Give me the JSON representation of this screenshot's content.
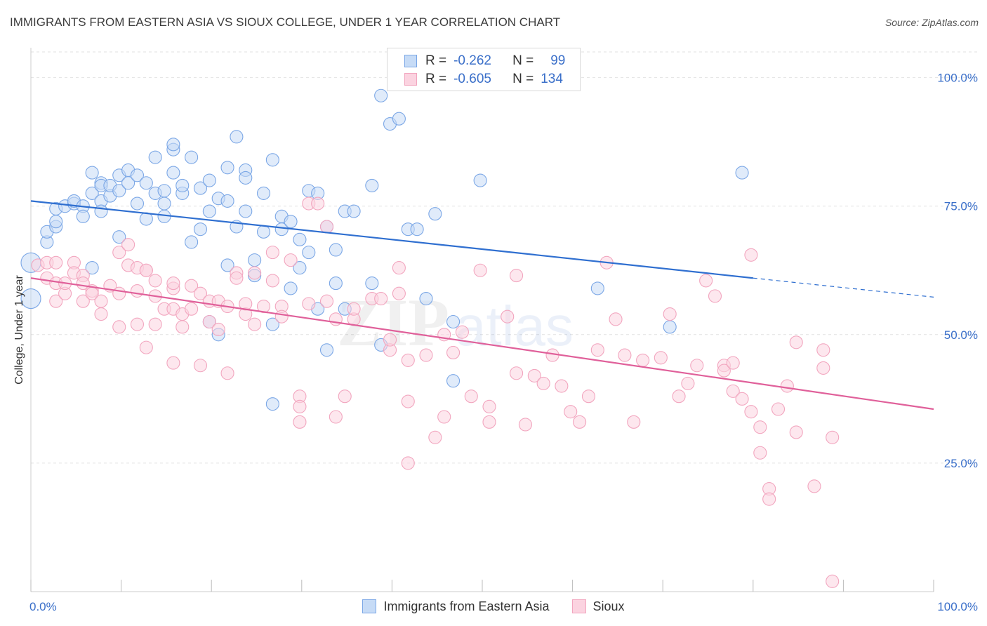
{
  "header": {
    "title": "IMMIGRANTS FROM EASTERN ASIA VS SIOUX COLLEGE, UNDER 1 YEAR CORRELATION CHART",
    "source": "Source: ZipAtlas.com"
  },
  "watermark": {
    "zip": "ZIP",
    "atlas": "atlas"
  },
  "stats": {
    "rows": [
      {
        "r_label": "R =",
        "r_value": "-0.262",
        "n_label": "N =",
        "n_value": "99",
        "color": "#7ba7e6"
      },
      {
        "r_label": "R =",
        "r_value": "-0.605",
        "n_label": "N =",
        "n_value": "134",
        "color": "#f2a6bf"
      }
    ]
  },
  "legend": {
    "items": [
      {
        "label": "Immigrants from Eastern Asia",
        "color": "#7ba7e6"
      },
      {
        "label": "Sioux",
        "color": "#f2a6bf"
      }
    ]
  },
  "chart_data": {
    "type": "scatter",
    "title": "IMMIGRANTS FROM EASTERN ASIA VS SIOUX COLLEGE, UNDER 1 YEAR CORRELATION CHART",
    "xlabel": "",
    "ylabel": "College, Under 1 year",
    "xlim": [
      0,
      100
    ],
    "ylim": [
      0,
      105
    ],
    "x_tick_labels": [
      "0.0%",
      "100.0%"
    ],
    "y_tick_labels": [
      "25.0%",
      "50.0%",
      "75.0%",
      "100.0%"
    ],
    "y_ticks": [
      25,
      50,
      75,
      100
    ],
    "grid": true,
    "legend_position": "bottom",
    "series": [
      {
        "name": "Immigrants from Eastern Asia",
        "color": "#7ba7e6",
        "trend_color": "#2f6fd0",
        "trend": {
          "x0": 0,
          "y0": 76,
          "x1": 80,
          "y1": 61,
          "dash_to_x": 100,
          "dash_to_y": 57.3
        },
        "points": [
          [
            0,
            57
          ],
          [
            0,
            64
          ],
          [
            1,
            68
          ],
          [
            1,
            70
          ],
          [
            2,
            71
          ],
          [
            2,
            72
          ],
          [
            2,
            74.5
          ],
          [
            3,
            75
          ],
          [
            4,
            75.5
          ],
          [
            4,
            76
          ],
          [
            5,
            75
          ],
          [
            5,
            73
          ],
          [
            6,
            63
          ],
          [
            6,
            81.5
          ],
          [
            6,
            77.5
          ],
          [
            7,
            79.5
          ],
          [
            7,
            79
          ],
          [
            7,
            76
          ],
          [
            7,
            74
          ],
          [
            8,
            77
          ],
          [
            8,
            79
          ],
          [
            9,
            78
          ],
          [
            9,
            81
          ],
          [
            9,
            69
          ],
          [
            10,
            82
          ],
          [
            10,
            79.5
          ],
          [
            11,
            75.5
          ],
          [
            11,
            81
          ],
          [
            12,
            72.5
          ],
          [
            12,
            79.5
          ],
          [
            13,
            77.5
          ],
          [
            13,
            84.5
          ],
          [
            14,
            78
          ],
          [
            14,
            75.5
          ],
          [
            14,
            73
          ],
          [
            15,
            86
          ],
          [
            15,
            87
          ],
          [
            15,
            81.5
          ],
          [
            16,
            77.5
          ],
          [
            16,
            79
          ],
          [
            17,
            84.5
          ],
          [
            17,
            68
          ],
          [
            18,
            78.5
          ],
          [
            18,
            70.5
          ],
          [
            19,
            80
          ],
          [
            19,
            74
          ],
          [
            19,
            52.5
          ],
          [
            20,
            76.5
          ],
          [
            20,
            50
          ],
          [
            21,
            76
          ],
          [
            21,
            63.5
          ],
          [
            21,
            82.5
          ],
          [
            22,
            88.5
          ],
          [
            22,
            71
          ],
          [
            23,
            82
          ],
          [
            23,
            74
          ],
          [
            23,
            80.5
          ],
          [
            24,
            61.5
          ],
          [
            24,
            64.5
          ],
          [
            25,
            77.5
          ],
          [
            25,
            70
          ],
          [
            26,
            52
          ],
          [
            26,
            36.5
          ],
          [
            26,
            84
          ],
          [
            27,
            73
          ],
          [
            27,
            70.5
          ],
          [
            28,
            72
          ],
          [
            28,
            59
          ],
          [
            29,
            68.5
          ],
          [
            29,
            63
          ],
          [
            30,
            66
          ],
          [
            30,
            78
          ],
          [
            31,
            55
          ],
          [
            31,
            77.5
          ],
          [
            32,
            71
          ],
          [
            32,
            47
          ],
          [
            33,
            66.5
          ],
          [
            33,
            60
          ],
          [
            34,
            55
          ],
          [
            34,
            74
          ],
          [
            35,
            74
          ],
          [
            37,
            79
          ],
          [
            37,
            60
          ],
          [
            38,
            48
          ],
          [
            38,
            96.5
          ],
          [
            39,
            91
          ],
          [
            40,
            92
          ],
          [
            41,
            70.5
          ],
          [
            42,
            70.5
          ],
          [
            43,
            57
          ],
          [
            44,
            73.5
          ],
          [
            46,
            52.5
          ],
          [
            46,
            41
          ],
          [
            49,
            80
          ],
          [
            62,
            59
          ],
          [
            70,
            51.5
          ],
          [
            78,
            81.5
          ]
        ]
      },
      {
        "name": "Sioux",
        "color": "#f2a6bf",
        "trend_color": "#e0609a",
        "trend": {
          "x0": 0,
          "y0": 61,
          "x1": 100,
          "y1": 35.5
        },
        "points": [
          [
            0,
            63.5
          ],
          [
            1,
            61
          ],
          [
            1,
            64
          ],
          [
            2,
            60
          ],
          [
            2,
            56.5
          ],
          [
            2,
            64
          ],
          [
            3,
            58
          ],
          [
            3,
            60
          ],
          [
            4,
            64
          ],
          [
            4,
            62
          ],
          [
            5,
            61.5
          ],
          [
            5,
            60
          ],
          [
            5,
            56.5
          ],
          [
            6,
            58.5
          ],
          [
            6,
            58
          ],
          [
            7,
            56.5
          ],
          [
            7,
            54
          ],
          [
            8,
            59.5
          ],
          [
            9,
            66
          ],
          [
            9,
            58
          ],
          [
            9,
            51.5
          ],
          [
            10,
            63.5
          ],
          [
            10,
            67.5
          ],
          [
            11,
            58.5
          ],
          [
            11,
            63
          ],
          [
            11,
            52
          ],
          [
            12,
            62.5
          ],
          [
            12,
            62.5
          ],
          [
            12,
            47.5
          ],
          [
            13,
            60.5
          ],
          [
            13,
            57.5
          ],
          [
            13,
            52
          ],
          [
            14,
            55
          ],
          [
            15,
            59
          ],
          [
            15,
            60
          ],
          [
            15,
            55
          ],
          [
            15,
            44.5
          ],
          [
            16,
            51.5
          ],
          [
            16,
            54
          ],
          [
            17,
            59.5
          ],
          [
            17,
            55
          ],
          [
            18,
            58
          ],
          [
            18,
            44
          ],
          [
            19,
            56.5
          ],
          [
            19,
            52.5
          ],
          [
            20,
            56.5
          ],
          [
            20,
            51
          ],
          [
            21,
            55.5
          ],
          [
            21,
            42.5
          ],
          [
            22,
            62
          ],
          [
            22,
            61
          ],
          [
            23,
            54
          ],
          [
            23,
            56
          ],
          [
            24,
            62
          ],
          [
            24,
            52
          ],
          [
            25,
            55.5
          ],
          [
            26,
            66
          ],
          [
            26,
            60.5
          ],
          [
            27,
            55.5
          ],
          [
            27,
            53.5
          ],
          [
            28,
            64.5
          ],
          [
            29,
            38
          ],
          [
            29,
            36
          ],
          [
            29,
            33
          ],
          [
            30,
            56
          ],
          [
            30,
            75.5
          ],
          [
            31,
            75.5
          ],
          [
            32,
            56.5
          ],
          [
            32,
            71
          ],
          [
            33,
            53
          ],
          [
            33,
            34
          ],
          [
            34,
            38
          ],
          [
            35,
            53
          ],
          [
            35,
            55
          ],
          [
            37,
            57
          ],
          [
            38,
            57
          ],
          [
            39,
            47
          ],
          [
            39,
            49
          ],
          [
            40,
            63
          ],
          [
            40,
            58
          ],
          [
            41,
            45
          ],
          [
            41,
            37
          ],
          [
            41,
            25
          ],
          [
            43,
            46
          ],
          [
            44,
            30
          ],
          [
            45,
            50
          ],
          [
            45,
            34
          ],
          [
            46,
            46.5
          ],
          [
            47,
            50.5
          ],
          [
            48,
            38
          ],
          [
            49,
            62.5
          ],
          [
            50,
            36
          ],
          [
            50,
            33
          ],
          [
            52,
            53.5
          ],
          [
            53,
            61.5
          ],
          [
            53,
            42.5
          ],
          [
            54,
            32.5
          ],
          [
            55,
            42
          ],
          [
            56,
            40.5
          ],
          [
            57,
            46
          ],
          [
            58,
            40
          ],
          [
            59,
            35
          ],
          [
            60,
            33
          ],
          [
            61,
            38
          ],
          [
            62,
            47
          ],
          [
            63,
            64
          ],
          [
            64,
            53
          ],
          [
            65,
            46
          ],
          [
            66,
            33
          ],
          [
            67,
            45
          ],
          [
            69,
            45.5
          ],
          [
            70,
            54
          ],
          [
            71,
            38
          ],
          [
            72,
            40.5
          ],
          [
            73,
            44
          ],
          [
            74,
            60.5
          ],
          [
            75,
            57.5
          ],
          [
            76,
            44
          ],
          [
            76,
            43
          ],
          [
            77,
            44.5
          ],
          [
            77,
            39
          ],
          [
            78,
            37.5
          ],
          [
            79,
            65.5
          ],
          [
            79,
            35
          ],
          [
            80,
            32
          ],
          [
            80,
            27
          ],
          [
            81,
            20
          ],
          [
            81,
            18
          ],
          [
            82,
            35.5
          ],
          [
            83,
            40
          ],
          [
            84,
            48.5
          ],
          [
            84,
            31
          ],
          [
            86,
            20.5
          ],
          [
            87,
            43.5
          ],
          [
            87,
            47
          ],
          [
            88,
            30
          ],
          [
            88,
            2
          ]
        ]
      }
    ]
  }
}
